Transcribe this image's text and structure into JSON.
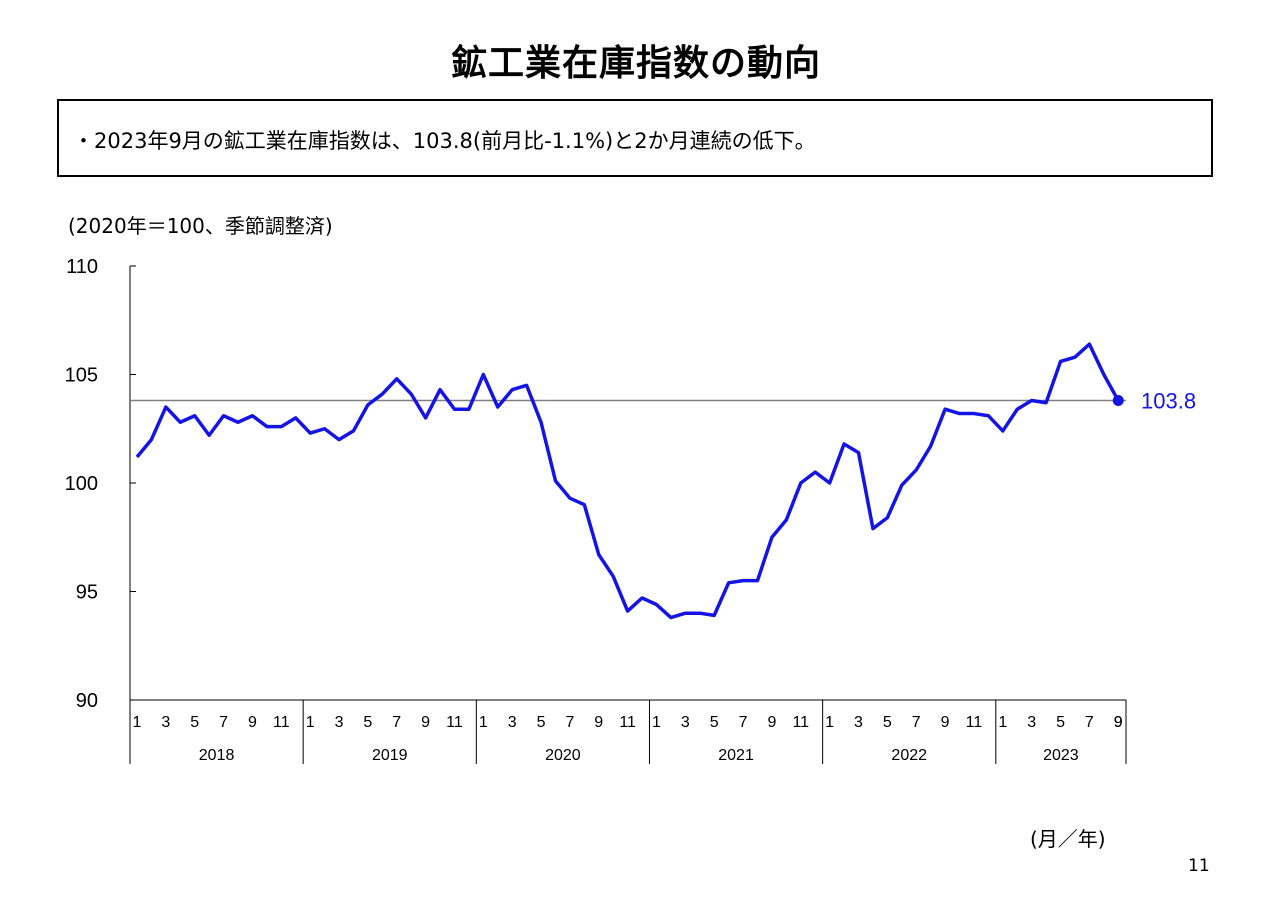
{
  "page": {
    "title": "鉱工業在庫指数の動向",
    "summary": "・2023年9月の鉱工業在庫指数は、103.8(前月比-1.1%)と2か月連続の低下。",
    "page_number": "11"
  },
  "colors": {
    "series": "#1414e6",
    "reference_line": "#808080",
    "axis": "#000000"
  },
  "chart_data": {
    "type": "line",
    "unit_note": "(2020年＝100、季節調整済)",
    "x_axis_unit": "(月／年)",
    "ylim": [
      90,
      110
    ],
    "y_ticks": [
      90,
      95,
      100,
      105,
      110
    ],
    "grid": false,
    "years": [
      "2018",
      "2019",
      "2020",
      "2021",
      "2022",
      "2023"
    ],
    "month_tick_labels": [
      "1",
      "3",
      "5",
      "7",
      "9",
      "11"
    ],
    "last_month_label": "9",
    "reference_line": 103.8,
    "end_label": "103.8",
    "series": [
      {
        "values": [
          101.2,
          102.0,
          103.5,
          102.8,
          103.1,
          102.2,
          103.1,
          102.8,
          103.1,
          102.6,
          102.6,
          103.0,
          102.3,
          102.5,
          102.0,
          102.4,
          103.6,
          104.1,
          104.8,
          104.1,
          103.0,
          104.3,
          103.4,
          103.4,
          105.0,
          103.5,
          104.3,
          104.5,
          102.8,
          100.1,
          99.3,
          99.0,
          96.7,
          95.7,
          94.1,
          94.7,
          94.4,
          93.8,
          94.0,
          94.0,
          93.9,
          95.4,
          95.5,
          95.5,
          97.5,
          98.3,
          100.0,
          100.5,
          100.0,
          101.8,
          101.4,
          97.9,
          98.4,
          99.9,
          100.6,
          101.7,
          103.4,
          103.2,
          103.2,
          103.1,
          102.4,
          103.4,
          103.8,
          103.7,
          105.6,
          105.8,
          106.4,
          105.0,
          103.8
        ]
      }
    ]
  }
}
